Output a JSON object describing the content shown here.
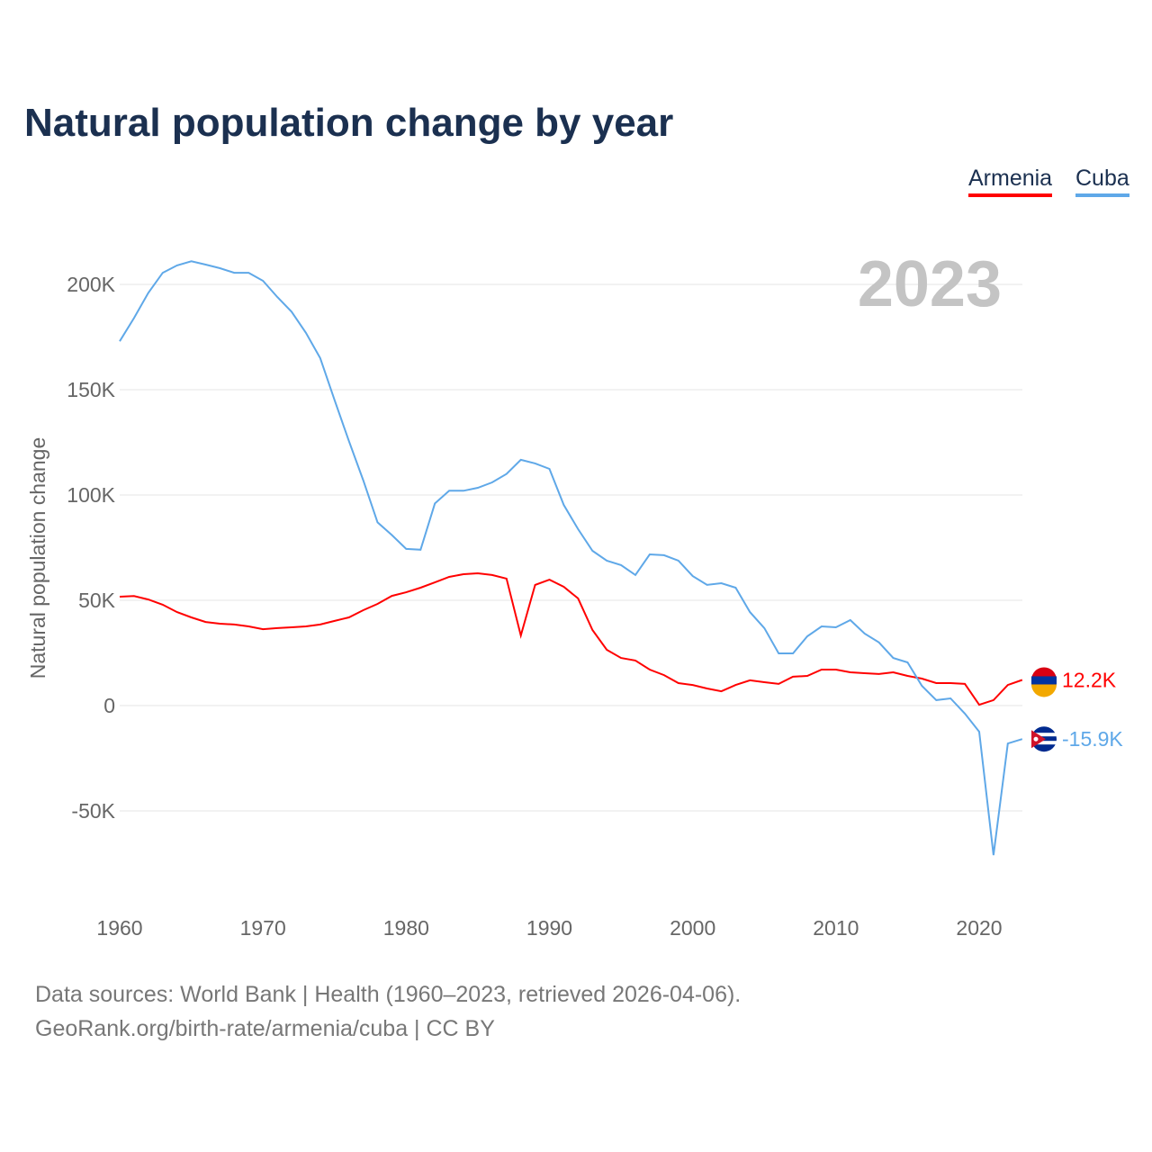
{
  "chart_data": {
    "type": "line",
    "title": "Natural population change by year",
    "ylabel": "Natural population change",
    "xlabel": "",
    "year_label": "2023",
    "xlim": [
      1960,
      2023
    ],
    "ylim": [
      -100000,
      230000
    ],
    "x_ticks": [
      1960,
      1970,
      1980,
      1990,
      2000,
      2010,
      2020
    ],
    "y_ticks": [
      -50000,
      0,
      50000,
      100000,
      150000,
      200000
    ],
    "y_tick_labels": [
      "-50K",
      "0",
      "50K",
      "100K",
      "150K",
      "200K"
    ],
    "grid": true,
    "legend_position": "top-right",
    "x_start": 1960,
    "series": [
      {
        "name": "Armenia",
        "color": "#ff0000",
        "end_label": "12.2K",
        "values": [
          51700,
          52000,
          50400,
          47900,
          44400,
          41900,
          39700,
          38900,
          38500,
          37600,
          36300,
          36800,
          37200,
          37600,
          38500,
          40200,
          41900,
          45300,
          48300,
          52100,
          53800,
          56000,
          58500,
          61100,
          62400,
          62800,
          62000,
          60300,
          33300,
          57300,
          59800,
          56400,
          50900,
          35900,
          26500,
          22600,
          21400,
          17100,
          14500,
          10700,
          9800,
          8100,
          6800,
          9800,
          12000,
          11100,
          10300,
          13700,
          14100,
          17100,
          17100,
          15800,
          15400,
          15000,
          15800,
          14100,
          12800,
          10700,
          10700,
          10300,
          400,
          2600,
          9800,
          12200
        ]
      },
      {
        "name": "Cuba",
        "color": "#5fa8e8",
        "end_label": "-15.9K",
        "values": [
          173000,
          184000,
          196000,
          205500,
          209000,
          211000,
          209400,
          207700,
          205500,
          205500,
          201700,
          194000,
          187000,
          177000,
          165000,
          145000,
          125600,
          107000,
          87000,
          81000,
          74400,
          74000,
          96000,
          102000,
          102000,
          103400,
          106000,
          110000,
          116700,
          115000,
          112400,
          95300,
          83800,
          73500,
          68800,
          66700,
          62000,
          71800,
          71400,
          68800,
          61500,
          57300,
          58100,
          56000,
          44400,
          36800,
          24800,
          24800,
          32900,
          37600,
          37200,
          40600,
          34200,
          30000,
          22600,
          20500,
          9400,
          2600,
          3400,
          -3800,
          -12400,
          -71000,
          -18000,
          -15900
        ]
      }
    ]
  },
  "source": {
    "line1": "Data sources: World Bank | Health (1960–2023, retrieved 2026-04-06).",
    "line2": "GeoRank.org/birth-rate/armenia/cuba | CC BY"
  }
}
